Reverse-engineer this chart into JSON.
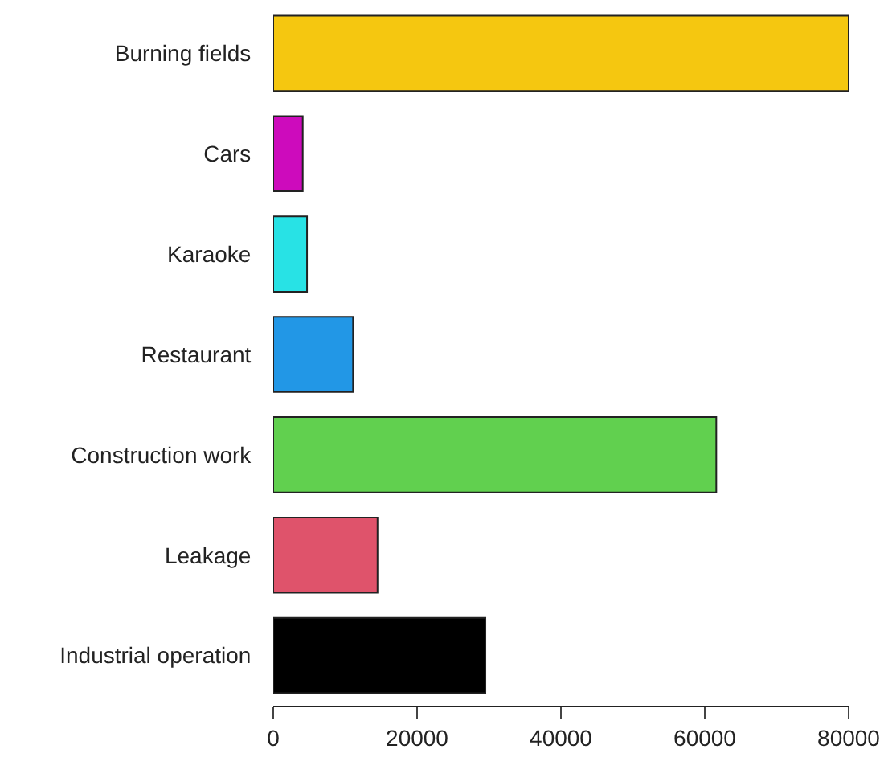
{
  "chart_data": {
    "type": "bar",
    "orientation": "horizontal",
    "categories": [
      "Burning fields",
      "Cars",
      "Karaoke",
      "Restaurant",
      "Construction work",
      "Leakage",
      "Industrial operation"
    ],
    "values": [
      80000,
      4100,
      4700,
      11100,
      61600,
      14500,
      29500
    ],
    "colors": [
      "#f5c710",
      "#cd0bbc",
      "#28e2e5",
      "#2297e6",
      "#61d04f",
      "#df536b",
      "#000000"
    ],
    "xlim": [
      0,
      80000
    ],
    "xticks": [
      0,
      20000,
      40000,
      60000,
      80000
    ]
  }
}
